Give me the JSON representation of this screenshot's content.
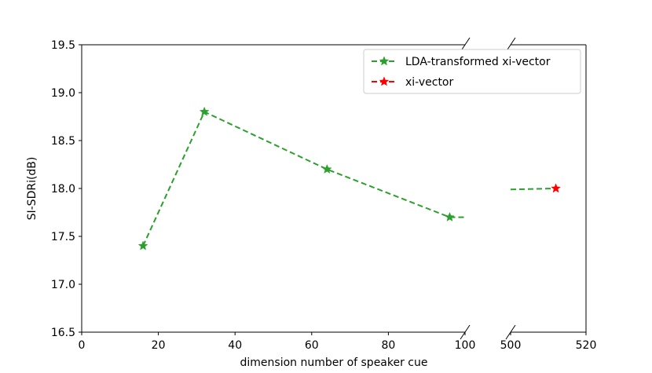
{
  "chart_data": {
    "type": "line",
    "title": "",
    "xlabel": "dimension number of speaker cue",
    "ylabel": "SI-SDRi(dB)",
    "ylim": [
      16.5,
      19.5
    ],
    "yticks": [
      "16.5",
      "17.0",
      "17.5",
      "18.0",
      "18.5",
      "19.0",
      "19.5"
    ],
    "broken_x_axis": true,
    "x_segments": [
      {
        "xlim": [
          0,
          100
        ],
        "ticks": [
          "0",
          "20",
          "40",
          "60",
          "80",
          "100"
        ]
      },
      {
        "xlim": [
          500,
          520
        ],
        "ticks": [
          "500",
          "520"
        ]
      }
    ],
    "grid": false,
    "legend_position": "top-right",
    "series": [
      {
        "name": "LDA-transformed xi-vector",
        "color": "#2ca02c",
        "linestyle": "dashed",
        "marker": "star",
        "points": [
          {
            "x": 16,
            "y": 17.4
          },
          {
            "x": 32,
            "y": 18.8
          },
          {
            "x": 64,
            "y": 18.2
          },
          {
            "x": 96,
            "y": 17.7
          }
        ],
        "tail_segments": [
          {
            "x_from": 96,
            "x_to": 100,
            "y_from": 17.7,
            "y_to": 17.7
          },
          {
            "x_from": 500,
            "x_to": 512,
            "y_from": 17.99,
            "y_to": 18.0
          }
        ]
      },
      {
        "name": "xi-vector",
        "color": "#ff0000",
        "linestyle": "dashed",
        "marker": "star",
        "points": [
          {
            "x": 512,
            "y": 18.0
          }
        ]
      }
    ]
  }
}
